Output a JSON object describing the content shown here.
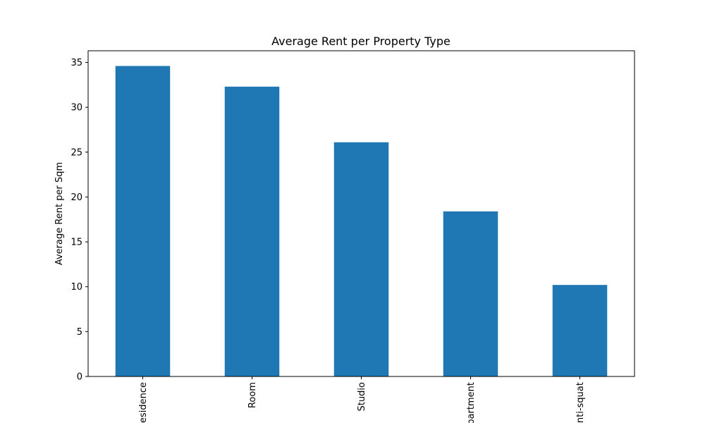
{
  "chart_data": {
    "type": "bar",
    "title": "Average Rent per Property Type",
    "xlabel": "",
    "ylabel": "Average Rent per Sqm",
    "categories": [
      "Residence",
      "Room",
      "Studio",
      "Apartment",
      "Anti-squat"
    ],
    "values": [
      34.6,
      32.3,
      26.1,
      18.4,
      10.2
    ],
    "ylim": [
      0,
      36.3
    ],
    "yticks": [
      0,
      5,
      10,
      15,
      20,
      25,
      30,
      35
    ],
    "bar_color": "#1f77b4",
    "grid": false,
    "legend": "none"
  }
}
